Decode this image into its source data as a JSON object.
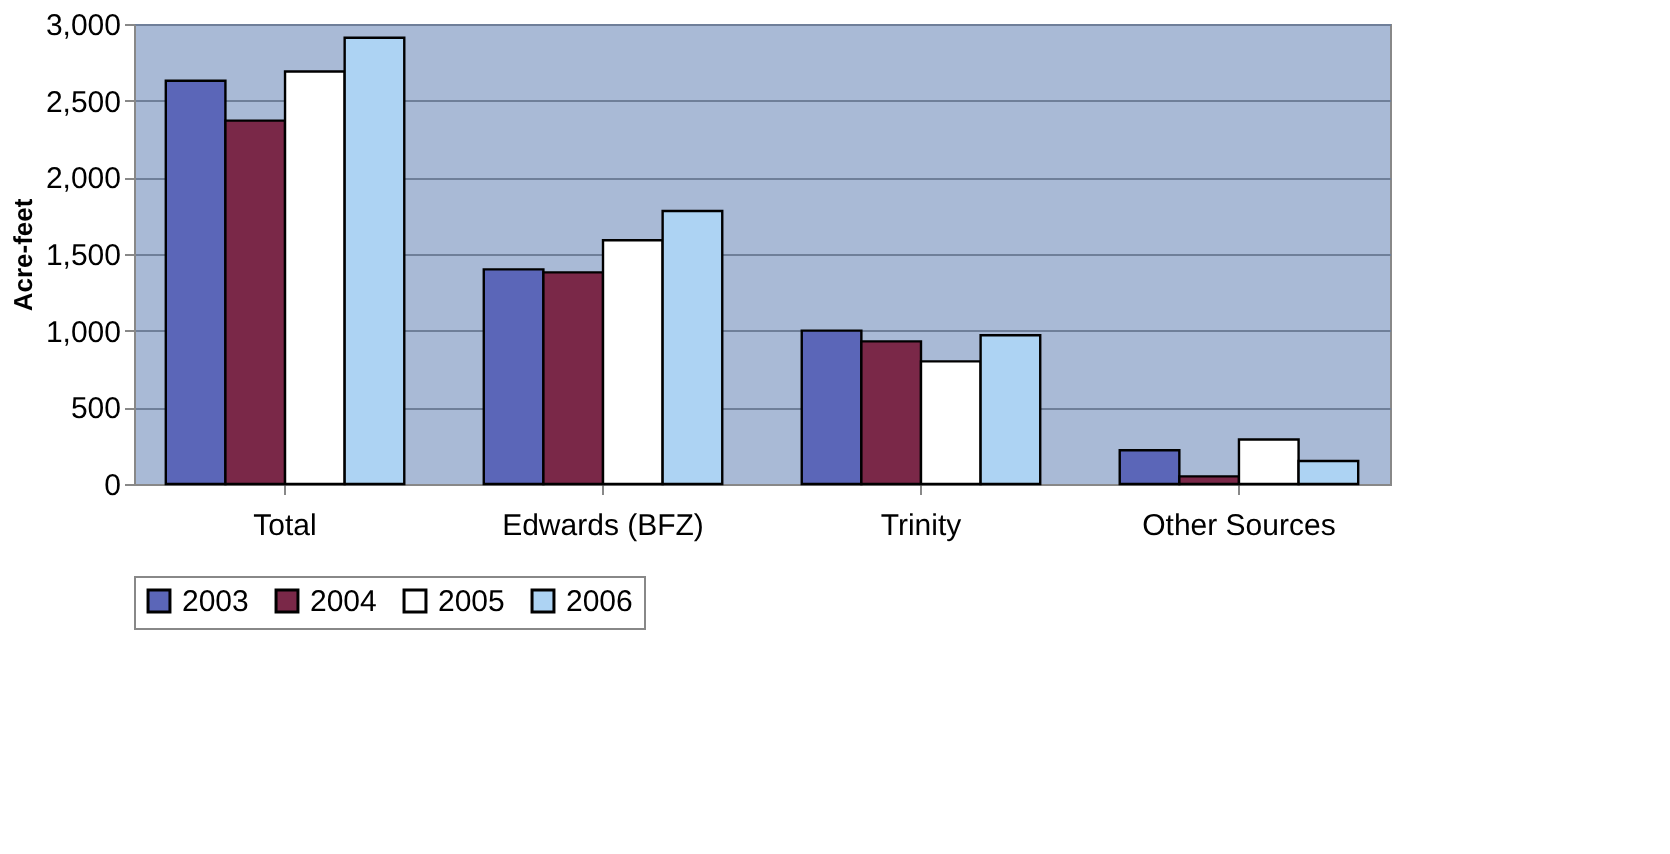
{
  "chart_data": {
    "type": "bar",
    "ylabel": "Acre-feet",
    "categories": [
      "Total",
      "Edwards (BFZ)",
      "Trinity",
      "Other Sources"
    ],
    "series": [
      {
        "name": "2003",
        "color": "#5b66b8",
        "values": [
          2630,
          1400,
          1000,
          220
        ]
      },
      {
        "name": "2004",
        "color": "#7a2848",
        "values": [
          2370,
          1380,
          930,
          50
        ]
      },
      {
        "name": "2005",
        "color": "#ffffff",
        "values": [
          2690,
          1590,
          800,
          290
        ]
      },
      {
        "name": "2006",
        "color": "#add3f3",
        "values": [
          2910,
          1780,
          970,
          150
        ]
      }
    ],
    "ylim": [
      0,
      3000
    ],
    "yticks": [
      0,
      {
        "value": 500,
        "label": "500"
      },
      {
        "value": 1000,
        "label": "1,000"
      },
      {
        "value": 1500,
        "label": "1,500"
      },
      {
        "value": 2000,
        "label": "2,000"
      },
      {
        "value": 2500,
        "label": "2,500"
      },
      {
        "value": 3000,
        "label": "3,000"
      }
    ],
    "grid": "y",
    "legend": "bottom"
  }
}
